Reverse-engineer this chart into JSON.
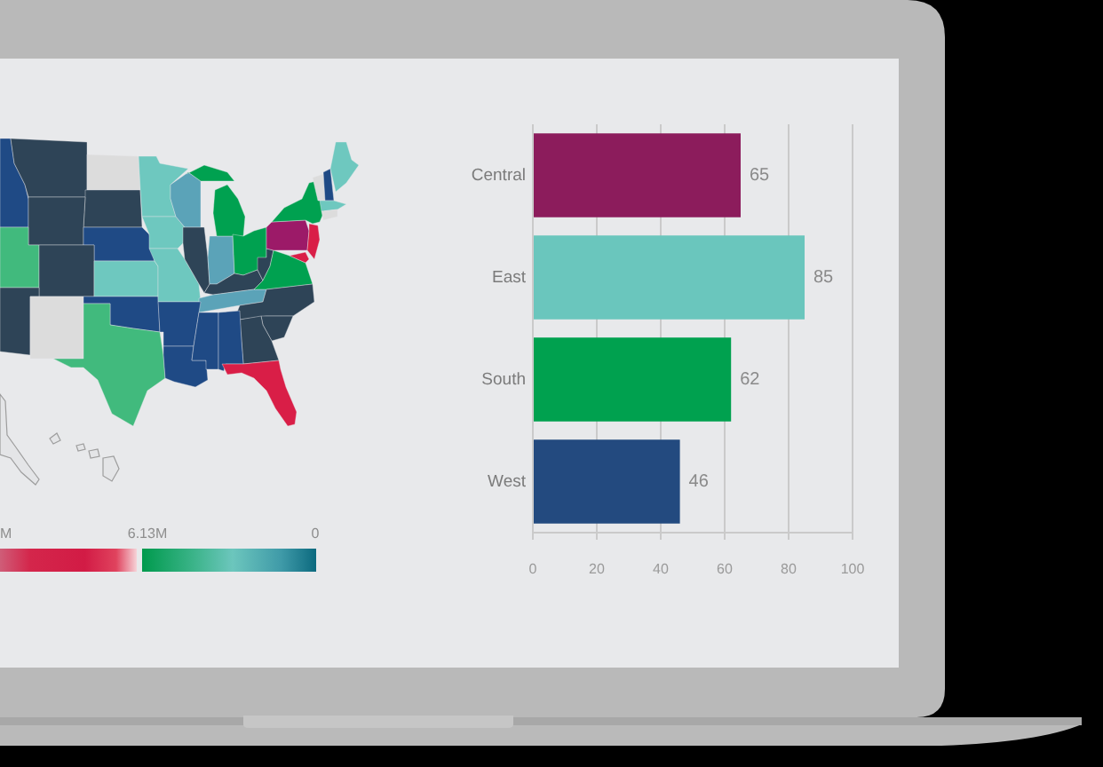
{
  "chart_data": [
    {
      "type": "other",
      "annotations": [
        "M",
        "6.13M",
        "0"
      ]
    },
    {
      "type": "bar",
      "orientation": "horizontal",
      "categories": [
        "Central",
        "East",
        "South",
        "West"
      ],
      "values": [
        65,
        85,
        62,
        46
      ],
      "colors": [
        "#8c1c5c",
        "#6ac6bd",
        "#00a14f",
        "#234a7f"
      ],
      "xlim": [
        0,
        100
      ],
      "xticks": [
        0,
        20,
        40,
        60,
        80,
        100
      ],
      "grid": "x",
      "data_labels": true
    }
  ]
}
